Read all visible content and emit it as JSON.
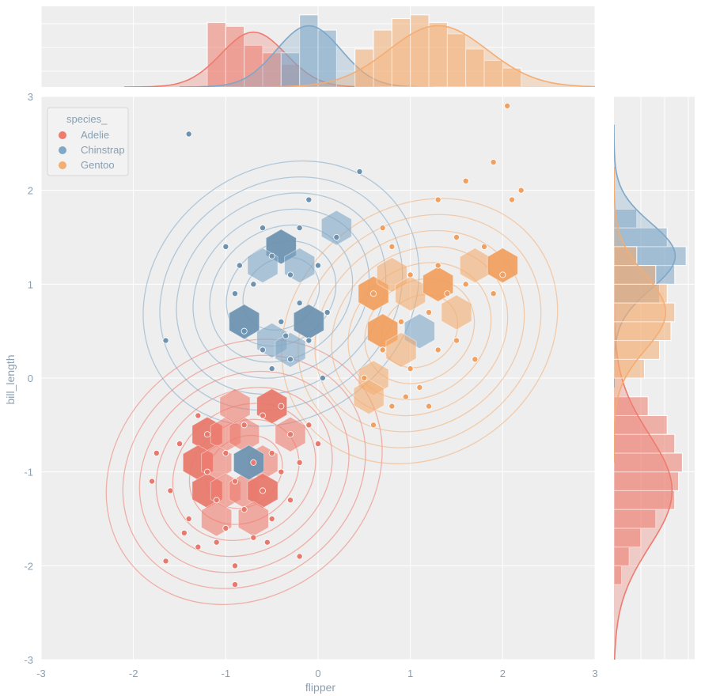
{
  "chart_data": {
    "type": "scatter",
    "subtype": "jointplot (hexbin + kde + scatter with marginal histograms/kde)",
    "title": "",
    "xlabel": "flipper",
    "ylabel": "bill_length",
    "xlim": [
      -3,
      3
    ],
    "ylim": [
      -3,
      3
    ],
    "xticks": [
      "-3",
      "-2",
      "-1",
      "0",
      "1",
      "2",
      "3"
    ],
    "yticks": [
      "-3",
      "-2",
      "-1",
      "0",
      "1",
      "2",
      "3"
    ],
    "grid": true,
    "legend": {
      "title": "species_",
      "placement": "top-left",
      "entries": [
        "Adelie",
        "Chinstrap",
        "Gentoo"
      ]
    },
    "colors": {
      "Adelie": "#ee7b6e",
      "Chinstrap": "#7fa7c7",
      "Gentoo": "#f4ad72",
      "Adelie_dark": "#e8796d",
      "Chinstrap_dark": "#6e93b1",
      "Gentoo_dark": "#f0a061",
      "background": "#eeeeee",
      "grid": "#ffffff"
    },
    "series": [
      {
        "name": "Adelie",
        "center": [
          -0.8,
          -1.0
        ],
        "points": [
          [
            -1.8,
            -1.1
          ],
          [
            -1.6,
            -1.2
          ],
          [
            -1.5,
            -0.7
          ],
          [
            -1.4,
            -1.5
          ],
          [
            -1.3,
            -1.8
          ],
          [
            -1.2,
            -1.0
          ],
          [
            -1.2,
            -0.6
          ],
          [
            -1.1,
            -1.3
          ],
          [
            -1.0,
            -1.6
          ],
          [
            -1.0,
            -0.8
          ],
          [
            -0.9,
            -1.1
          ],
          [
            -0.9,
            -2.0
          ],
          [
            -0.8,
            -0.5
          ],
          [
            -0.8,
            -1.4
          ],
          [
            -0.7,
            -0.9
          ],
          [
            -0.7,
            -1.7
          ],
          [
            -0.6,
            -1.2
          ],
          [
            -0.6,
            -0.4
          ],
          [
            -0.5,
            -0.8
          ],
          [
            -0.5,
            -1.5
          ],
          [
            -0.4,
            -1.0
          ],
          [
            -0.4,
            -0.3
          ],
          [
            -0.3,
            -1.3
          ],
          [
            -0.3,
            -0.6
          ],
          [
            -0.2,
            -1.9
          ],
          [
            -0.2,
            -0.9
          ],
          [
            -1.65,
            -1.95
          ],
          [
            -0.9,
            -2.2
          ],
          [
            -1.1,
            -1.75
          ],
          [
            -1.3,
            -0.4
          ],
          [
            -0.1,
            -0.5
          ],
          [
            0.0,
            -0.7
          ],
          [
            -1.75,
            -0.8
          ],
          [
            -1.45,
            -1.65
          ],
          [
            -0.55,
            -1.75
          ]
        ],
        "hexbins": [
          [
            -1.2,
            -0.6
          ],
          [
            -1.0,
            -0.6
          ],
          [
            -0.8,
            -0.6
          ],
          [
            -1.3,
            -0.9
          ],
          [
            -1.1,
            -0.9
          ],
          [
            -0.6,
            -0.9
          ],
          [
            -1.2,
            -1.2
          ],
          [
            -1.0,
            -1.2
          ],
          [
            -0.8,
            -1.2
          ],
          [
            -0.6,
            -1.2
          ],
          [
            -1.1,
            -1.5
          ],
          [
            -0.7,
            -1.5
          ],
          [
            -0.5,
            -0.3
          ],
          [
            -0.3,
            -0.6
          ],
          [
            -0.9,
            -0.3
          ]
        ]
      },
      {
        "name": "Chinstrap",
        "center": [
          -0.4,
          0.9
        ],
        "points": [
          [
            -1.4,
            2.6
          ],
          [
            -1.65,
            0.4
          ],
          [
            -1.0,
            1.4
          ],
          [
            -0.9,
            0.9
          ],
          [
            -0.8,
            0.5
          ],
          [
            -0.7,
            1.0
          ],
          [
            -0.6,
            0.3
          ],
          [
            -0.5,
            1.3
          ],
          [
            -0.4,
            0.6
          ],
          [
            -0.3,
            1.1
          ],
          [
            -0.3,
            0.2
          ],
          [
            -0.2,
            0.8
          ],
          [
            -0.1,
            1.9
          ],
          [
            -0.1,
            0.4
          ],
          [
            0.0,
            1.2
          ],
          [
            0.1,
            0.7
          ],
          [
            0.2,
            1.5
          ],
          [
            0.45,
            2.2
          ],
          [
            -0.6,
            1.6
          ],
          [
            -0.2,
            1.6
          ],
          [
            -0.5,
            0.1
          ],
          [
            0.05,
            0.0
          ],
          [
            -0.85,
            1.2
          ],
          [
            -0.35,
            0.45
          ]
        ],
        "hexbins": [
          [
            -0.4,
            1.4
          ],
          [
            -0.6,
            1.2
          ],
          [
            -0.2,
            1.2
          ],
          [
            -0.8,
            0.6
          ],
          [
            -0.5,
            0.4
          ],
          [
            -0.3,
            0.3
          ],
          [
            -0.1,
            0.6
          ],
          [
            0.2,
            1.6
          ],
          [
            1.1,
            0.5
          ],
          [
            -0.75,
            -0.9
          ]
        ]
      },
      {
        "name": "Gentoo",
        "center": [
          1.1,
          0.5
        ],
        "points": [
          [
            0.5,
            0.0
          ],
          [
            0.6,
            0.9
          ],
          [
            0.7,
            0.3
          ],
          [
            0.8,
            1.4
          ],
          [
            0.8,
            -0.3
          ],
          [
            0.9,
            0.6
          ],
          [
            1.0,
            1.1
          ],
          [
            1.0,
            0.1
          ],
          [
            1.1,
            -0.1
          ],
          [
            1.2,
            0.7
          ],
          [
            1.3,
            1.2
          ],
          [
            1.3,
            0.3
          ],
          [
            1.4,
            0.9
          ],
          [
            1.5,
            1.5
          ],
          [
            1.5,
            0.4
          ],
          [
            1.6,
            1.0
          ],
          [
            1.7,
            0.2
          ],
          [
            1.8,
            1.4
          ],
          [
            1.9,
            2.3
          ],
          [
            2.0,
            1.1
          ],
          [
            2.05,
            2.9
          ],
          [
            2.1,
            1.9
          ],
          [
            1.6,
            2.1
          ],
          [
            1.3,
            1.9
          ],
          [
            0.6,
            -0.5
          ],
          [
            1.2,
            -0.3
          ],
          [
            0.95,
            -0.2
          ],
          [
            0.7,
            1.6
          ],
          [
            2.2,
            2.0
          ],
          [
            1.9,
            0.9
          ]
        ],
        "hexbins": [
          [
            0.6,
            0.9
          ],
          [
            0.8,
            1.1
          ],
          [
            1.0,
            0.9
          ],
          [
            0.7,
            0.5
          ],
          [
            0.9,
            0.3
          ],
          [
            0.6,
            0.0
          ],
          [
            1.3,
            1.0
          ],
          [
            1.5,
            0.7
          ],
          [
            1.7,
            1.2
          ],
          [
            2.0,
            1.2
          ],
          [
            0.55,
            -0.2
          ]
        ]
      }
    ],
    "marginal_x": {
      "series": [
        {
          "name": "Adelie",
          "bins": [
            -1.2,
            -1.0,
            -0.8,
            -0.6,
            -0.4
          ],
          "heights": [
            0.85,
            0.8,
            0.55,
            0.45,
            0.3
          ]
        },
        {
          "name": "Chinstrap",
          "bins": [
            -0.4,
            -0.2,
            0.0
          ],
          "heights": [
            0.45,
            0.95,
            0.75
          ]
        },
        {
          "name": "Gentoo",
          "bins": [
            0.4,
            0.6,
            0.8,
            1.0,
            1.2,
            1.4,
            1.6,
            1.8,
            2.0
          ],
          "heights": [
            0.5,
            0.75,
            0.9,
            0.95,
            0.85,
            0.7,
            0.5,
            0.35,
            0.25
          ]
        }
      ]
    },
    "marginal_y": {
      "series": [
        {
          "name": "Adelie",
          "bins": [
            -2.2,
            -2.0,
            -1.8,
            -1.6,
            -1.4,
            -1.2,
            -1.0,
            -0.8,
            -0.6,
            -0.4
          ],
          "heights": [
            0.1,
            0.2,
            0.35,
            0.55,
            0.8,
            0.85,
            0.9,
            0.8,
            0.7,
            0.45
          ]
        },
        {
          "name": "Chinstrap",
          "bins": [
            0.8,
            1.0,
            1.2,
            1.4,
            1.6
          ],
          "heights": [
            0.6,
            0.8,
            0.95,
            0.7,
            0.3
          ]
        },
        {
          "name": "Gentoo",
          "bins": [
            0.0,
            0.2,
            0.4,
            0.6,
            0.8,
            1.0,
            1.2
          ],
          "heights": [
            0.4,
            0.6,
            0.75,
            0.8,
            0.7,
            0.55,
            0.3
          ]
        }
      ]
    }
  }
}
